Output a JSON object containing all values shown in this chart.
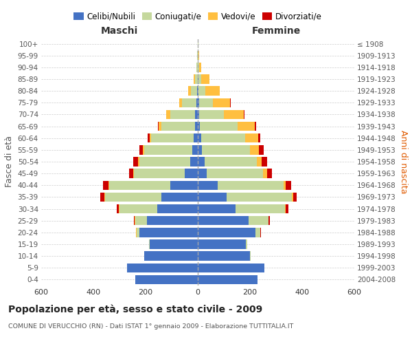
{
  "age_groups": [
    "0-4",
    "5-9",
    "10-14",
    "15-19",
    "20-24",
    "25-29",
    "30-34",
    "35-39",
    "40-44",
    "45-49",
    "50-54",
    "55-59",
    "60-64",
    "65-69",
    "70-74",
    "75-79",
    "80-84",
    "85-89",
    "90-94",
    "95-99",
    "100+"
  ],
  "birth_years": [
    "2004-2008",
    "1999-2003",
    "1994-1998",
    "1989-1993",
    "1984-1988",
    "1979-1983",
    "1974-1978",
    "1969-1973",
    "1964-1968",
    "1959-1963",
    "1954-1958",
    "1949-1953",
    "1944-1948",
    "1939-1943",
    "1934-1938",
    "1929-1933",
    "1924-1928",
    "1919-1923",
    "1914-1918",
    "1909-1913",
    "≤ 1908"
  ],
  "male": {
    "celibi": [
      240,
      270,
      205,
      185,
      225,
      195,
      155,
      140,
      105,
      50,
      30,
      20,
      15,
      10,
      10,
      5,
      2,
      1,
      0,
      0,
      0
    ],
    "coniugati": [
      0,
      0,
      0,
      2,
      10,
      45,
      145,
      215,
      235,
      195,
      195,
      185,
      165,
      130,
      95,
      55,
      25,
      10,
      4,
      2,
      1
    ],
    "vedovi": [
      0,
      0,
      0,
      0,
      1,
      2,
      3,
      3,
      3,
      3,
      5,
      5,
      5,
      10,
      15,
      10,
      10,
      5,
      2,
      0,
      0
    ],
    "divorziati": [
      0,
      0,
      0,
      0,
      1,
      3,
      8,
      15,
      20,
      15,
      18,
      15,
      8,
      3,
      2,
      2,
      0,
      0,
      0,
      0,
      0
    ]
  },
  "female": {
    "nubili": [
      230,
      255,
      200,
      185,
      220,
      195,
      145,
      110,
      75,
      35,
      25,
      15,
      12,
      8,
      5,
      4,
      3,
      2,
      0,
      0,
      0
    ],
    "coniugate": [
      0,
      0,
      2,
      5,
      20,
      75,
      190,
      250,
      255,
      215,
      200,
      185,
      170,
      145,
      95,
      55,
      25,
      12,
      6,
      3,
      2
    ],
    "vedove": [
      0,
      0,
      0,
      0,
      0,
      2,
      3,
      5,
      8,
      15,
      20,
      35,
      50,
      65,
      75,
      65,
      55,
      30,
      8,
      2,
      1
    ],
    "divorziate": [
      0,
      0,
      0,
      0,
      1,
      3,
      10,
      15,
      20,
      20,
      22,
      18,
      8,
      5,
      5,
      3,
      0,
      0,
      0,
      0,
      0
    ]
  },
  "colors": {
    "celibi_nubili": "#4472C4",
    "coniugati": "#C5D89D",
    "vedovi": "#FFBF40",
    "divorziati": "#CC0000"
  },
  "xlim": 600,
  "title": "Popolazione per età, sesso e stato civile - 2009",
  "subtitle": "COMUNE DI VERUCCHIO (RN) - Dati ISTAT 1° gennaio 2009 - Elaborazione TUTTITALIA.IT",
  "ylabel_left": "Fasce di età",
  "ylabel_right": "Anni di nascita",
  "xlabel_left": "Maschi",
  "xlabel_right": "Femmine"
}
